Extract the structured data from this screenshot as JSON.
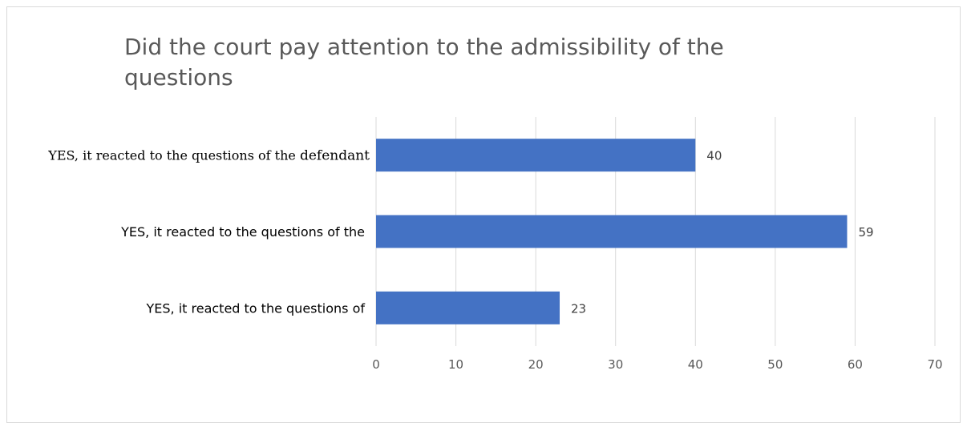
{
  "chart_data": {
    "type": "bar",
    "orientation": "horizontal",
    "title": "Did the court pay attention to the admissibility of the questions",
    "categories": [
      "YES, it reacted to the questions of the defendant",
      "YES, it reacted to the questions of the",
      "YES, it reacted to the questions of"
    ],
    "category_label_parts": [
      [
        "YES, it reacted to the questions of the ",
        "defendant"
      ],
      [
        "YES, it reacted to the questions of the",
        ""
      ],
      [
        "YES, it reacted to the questions of",
        ""
      ]
    ],
    "values": [
      40,
      59,
      23
    ],
    "xlim": [
      0,
      70
    ],
    "xticks": [
      0,
      10,
      20,
      30,
      40,
      50,
      60,
      70
    ],
    "xlabel": "",
    "ylabel": "",
    "grid": true,
    "data_labels": true,
    "bar_color": "#4472C4",
    "grid_color": "#d9d9d9"
  }
}
